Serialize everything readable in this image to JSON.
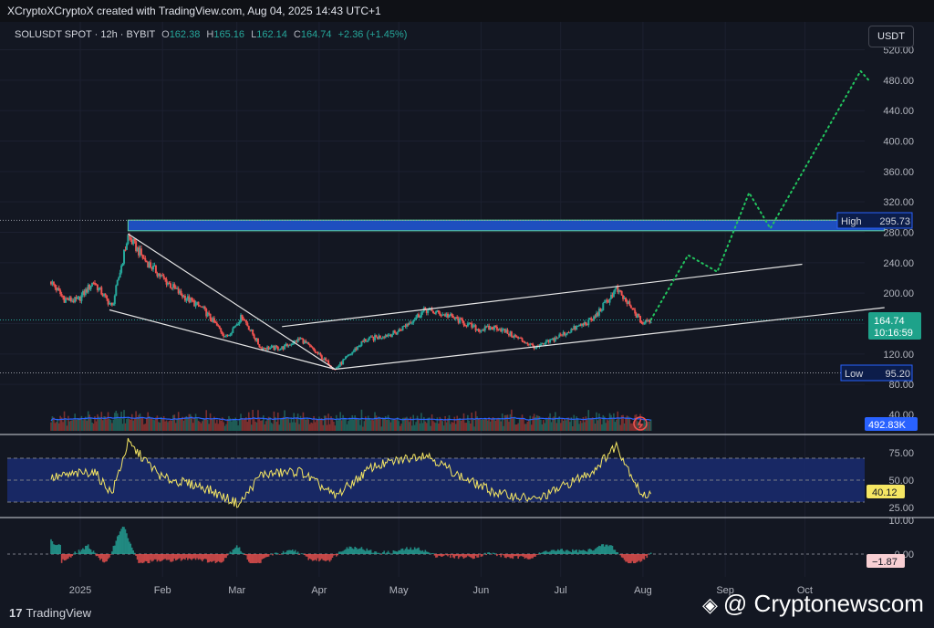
{
  "header": {
    "credit": "XCryptoXCryptoX created with TradingView.com, Aug 04, 2025 14:43 UTC+1"
  },
  "legend": {
    "symbol": "SOLUSDT SPOT · 12h · BYBIT",
    "open_label": "O",
    "open": "162.38",
    "high_label": "H",
    "high": "165.16",
    "low_label": "L",
    "low": "162.14",
    "close_label": "C",
    "close": "164.74",
    "change": "+2.36 (+1.45%)"
  },
  "currency_button": "USDT",
  "footer": {
    "logo": "TradingView",
    "logo_mark": "17",
    "watermark": "@ Cryptonewscom",
    "watermark_mark": "◈"
  },
  "colors": {
    "bg": "#131722",
    "up": "#26a69a",
    "down": "#ef5350",
    "zone": "#1e4fbf",
    "rsi": "#f5e663",
    "volume_ma": "#2962ff",
    "projection": "#22c55e"
  },
  "chart_data": {
    "type": "candlestick",
    "symbol": "SOLUSDT",
    "interval": "12h",
    "x_ticks": [
      "2025",
      "Feb",
      "Mar",
      "Apr",
      "May",
      "Jun",
      "Jul",
      "Aug",
      "Sep",
      "Oct"
    ],
    "price_axis": {
      "ticks": [
        "80.00",
        "120.00",
        "160.00",
        "200.00",
        "240.00",
        "280.00",
        "320.00",
        "360.00",
        "400.00",
        "440.00",
        "480.00",
        "520.00"
      ],
      "range": [
        80,
        520
      ]
    },
    "price_path": [
      {
        "date": "2024-12-21",
        "price": 215
      },
      {
        "date": "2024-12-26",
        "price": 192
      },
      {
        "date": "2024-12-31",
        "price": 190
      },
      {
        "date": "2025-01-06",
        "price": 215
      },
      {
        "date": "2025-01-13",
        "price": 182
      },
      {
        "date": "2025-01-19",
        "price": 275
      },
      {
        "date": "2025-01-25",
        "price": 245
      },
      {
        "date": "2025-02-01",
        "price": 220
      },
      {
        "date": "2025-02-08",
        "price": 198
      },
      {
        "date": "2025-02-16",
        "price": 180
      },
      {
        "date": "2025-02-25",
        "price": 142
      },
      {
        "date": "2025-03-03",
        "price": 170
      },
      {
        "date": "2025-03-10",
        "price": 128
      },
      {
        "date": "2025-03-18",
        "price": 128
      },
      {
        "date": "2025-03-25",
        "price": 140
      },
      {
        "date": "2025-04-07",
        "price": 100
      },
      {
        "date": "2025-04-18",
        "price": 138
      },
      {
        "date": "2025-04-30",
        "price": 148
      },
      {
        "date": "2025-05-11",
        "price": 178
      },
      {
        "date": "2025-05-20",
        "price": 170
      },
      {
        "date": "2025-05-31",
        "price": 152
      },
      {
        "date": "2025-06-07",
        "price": 155
      },
      {
        "date": "2025-06-22",
        "price": 128
      },
      {
        "date": "2025-07-04",
        "price": 150
      },
      {
        "date": "2025-07-13",
        "price": 165
      },
      {
        "date": "2025-07-22",
        "price": 205
      },
      {
        "date": "2025-08-01",
        "price": 160
      },
      {
        "date": "2025-08-04",
        "price": 164.74
      }
    ],
    "projection": [
      {
        "date": "2025-08-04",
        "price": 165
      },
      {
        "date": "2025-08-18",
        "price": 250
      },
      {
        "date": "2025-08-29",
        "price": 228
      },
      {
        "date": "2025-09-10",
        "price": 332
      },
      {
        "date": "2025-09-18",
        "price": 285
      },
      {
        "date": "2025-10-22",
        "price": 492
      },
      {
        "date": "2025-10-25",
        "price": 480
      }
    ],
    "resistance_zone": {
      "from": 282,
      "to": 296,
      "start": "2025-01-19",
      "end": "2025-10-31"
    },
    "levels": [
      {
        "label": "High",
        "value": "295.73"
      },
      {
        "label": "Low",
        "value": "95.20"
      }
    ],
    "current_price": {
      "value": "164.74",
      "countdown": "10:16:59"
    },
    "trendlines": [
      {
        "name": "wedge-upper",
        "from": {
          "date": "2025-01-19",
          "price": 278
        },
        "to": {
          "date": "2025-04-07",
          "price": 100
        }
      },
      {
        "name": "wedge-lower",
        "from": {
          "date": "2025-01-12",
          "price": 178
        },
        "to": {
          "date": "2025-04-07",
          "price": 100
        }
      },
      {
        "name": "channel-upper",
        "from": {
          "date": "2025-03-18",
          "price": 156
        },
        "to": {
          "date": "2025-09-30",
          "price": 238
        }
      },
      {
        "name": "channel-lower",
        "from": {
          "date": "2025-04-07",
          "price": 100
        },
        "to": {
          "date": "2025-10-31",
          "price": 181
        }
      }
    ],
    "volume": {
      "value": "492.83K",
      "ticks": [
        "40.00"
      ]
    },
    "rsi": {
      "value": "40.12",
      "ticks": [
        "75.00",
        "50.00",
        "25.00"
      ],
      "band": [
        30,
        70
      ],
      "path": [
        {
          "date": "2024-12-21",
          "value": 52
        },
        {
          "date": "2025-01-06",
          "value": 58
        },
        {
          "date": "2025-01-13",
          "value": 38
        },
        {
          "date": "2025-01-19",
          "value": 84
        },
        {
          "date": "2025-02-01",
          "value": 52
        },
        {
          "date": "2025-02-16",
          "value": 44
        },
        {
          "date": "2025-03-02",
          "value": 28
        },
        {
          "date": "2025-03-10",
          "value": 55
        },
        {
          "date": "2025-03-25",
          "value": 58
        },
        {
          "date": "2025-04-07",
          "value": 35
        },
        {
          "date": "2025-04-21",
          "value": 62
        },
        {
          "date": "2025-05-11",
          "value": 74
        },
        {
          "date": "2025-05-25",
          "value": 52
        },
        {
          "date": "2025-06-07",
          "value": 38
        },
        {
          "date": "2025-06-22",
          "value": 32
        },
        {
          "date": "2025-07-13",
          "value": 58
        },
        {
          "date": "2025-07-22",
          "value": 82
        },
        {
          "date": "2025-08-01",
          "value": 34
        },
        {
          "date": "2025-08-04",
          "value": 40.12
        }
      ]
    },
    "macd": {
      "value": "−1.87",
      "ticks": [
        "10.00",
        "0.00"
      ]
    }
  }
}
